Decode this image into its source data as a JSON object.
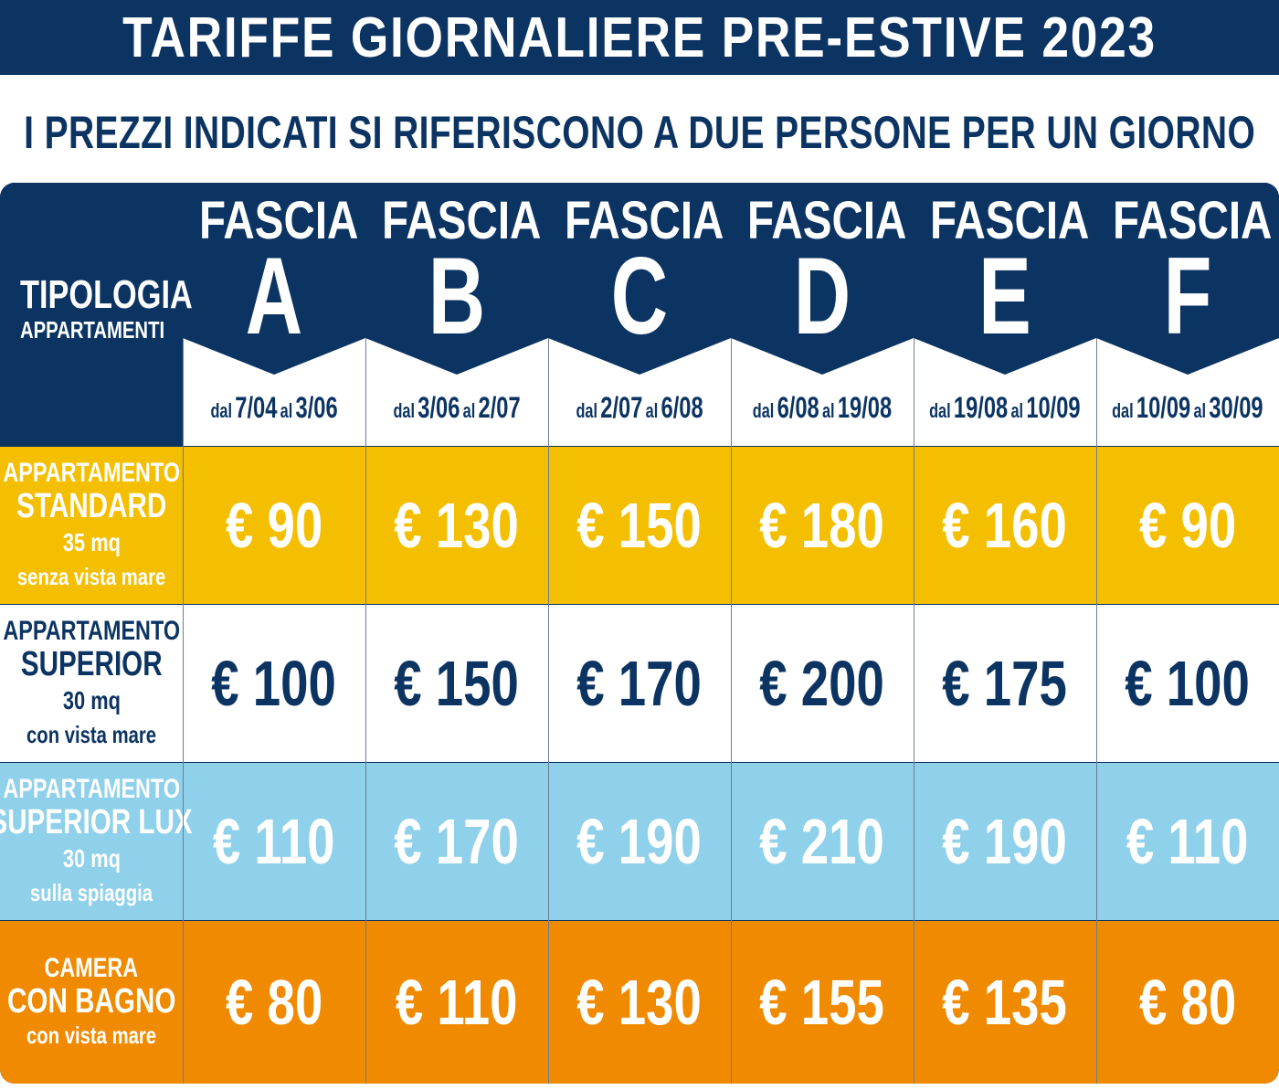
{
  "title": "TARIFFE GIORNALIERE PRE-ESTIVE 2023",
  "subtitle": "I PREZZI INDICATI SI RIFERISCONO A DUE PERSONE PER UN GIORNO",
  "header": {
    "tipologia_line1": "TIPOLOGIA",
    "tipologia_line2": "APPARTAMENTI",
    "band_word": "FASCIA",
    "dal": "dal",
    "al": "al",
    "bands": [
      {
        "letter": "A",
        "from": "7/04",
        "to": "3/06"
      },
      {
        "letter": "B",
        "from": "3/06",
        "to": "2/07"
      },
      {
        "letter": "C",
        "from": "2/07",
        "to": "6/08"
      },
      {
        "letter": "D",
        "from": "6/08",
        "to": "19/08"
      },
      {
        "letter": "E",
        "from": "19/08",
        "to": "10/09"
      },
      {
        "letter": "F",
        "from": "10/09",
        "to": "30/09"
      }
    ]
  },
  "rows": [
    {
      "line1": "APPARTAMENTO",
      "line2": "STANDARD",
      "line3": "35 mq",
      "line4": "senza vista mare",
      "bg": "#f4bf00",
      "label_color": "#ffffff",
      "price_color": "#ffffff",
      "prices": [
        "€ 90",
        "€ 130",
        "€ 150",
        "€ 180",
        "€ 160",
        "€ 90"
      ]
    },
    {
      "line1": "APPARTAMENTO",
      "line2": "SUPERIOR",
      "line3": "30 mq",
      "line4": "con vista mare",
      "bg": "#ffffff",
      "label_color": "#0c3463",
      "price_color": "#0c3463",
      "prices": [
        "€ 100",
        "€ 150",
        "€ 170",
        "€ 200",
        "€ 175",
        "€ 100"
      ]
    },
    {
      "line1": "APPARTAMENTO",
      "line2": "SUPERIOR LUX",
      "line3": "30 mq",
      "line4": "sulla spiaggia",
      "bg": "#8fd0ea",
      "label_color": "#ffffff",
      "price_color": "#ffffff",
      "prices": [
        "€ 110",
        "€ 170",
        "€ 190",
        "€ 210",
        "€ 190",
        "€ 110"
      ]
    },
    {
      "line1": "CAMERA",
      "line2": "CON BAGNO",
      "line3": "",
      "line4": "con vista mare",
      "bg": "#f08a00",
      "label_color": "#ffffff",
      "price_color": "#ffffff",
      "prices": [
        "€ 80",
        "€ 110",
        "€ 130",
        "€ 155",
        "€ 135",
        "€ 80"
      ]
    }
  ],
  "colors": {
    "navy": "#0c3463",
    "grid": "#6b7c96"
  }
}
